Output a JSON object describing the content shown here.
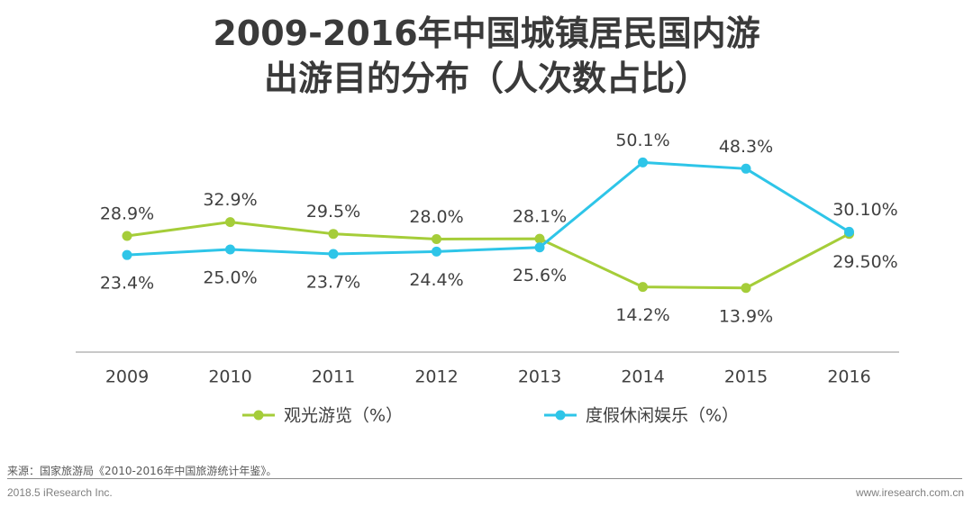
{
  "title": {
    "line1": "2009-2016年中国城镇居民国内游",
    "line2": "出游目的分布（人次数占比）"
  },
  "chart_data": {
    "type": "line",
    "categories": [
      "2009",
      "2010",
      "2011",
      "2012",
      "2013",
      "2014",
      "2015",
      "2016"
    ],
    "series": [
      {
        "name": "观光游览（%）",
        "color": "#a5cd39",
        "values": [
          28.9,
          32.9,
          29.5,
          28.0,
          28.1,
          14.2,
          13.9,
          29.5
        ],
        "labels": [
          "28.9%",
          "32.9%",
          "29.5%",
          "28.0%",
          "28.1%",
          "14.2%",
          "13.9%",
          "29.50%"
        ]
      },
      {
        "name": "度假休闲娱乐（%）",
        "color": "#2ec5e8",
        "values": [
          23.4,
          25.0,
          23.7,
          24.4,
          25.6,
          50.1,
          48.3,
          30.1
        ],
        "labels": [
          "23.4%",
          "25.0%",
          "23.7%",
          "24.4%",
          "25.6%",
          "50.1%",
          "48.3%",
          "30.10%"
        ]
      }
    ],
    "xlabel": "",
    "ylabel": "",
    "ylim": [
      0,
      50
    ],
    "grid": false,
    "legend_position": "bottom"
  },
  "footer": {
    "source": "来源：国家旅游局《2010-2016年中国旅游统计年鉴》。",
    "copyright": "2018.5 iResearch Inc.",
    "website": "www.iresearch.com.cn"
  }
}
